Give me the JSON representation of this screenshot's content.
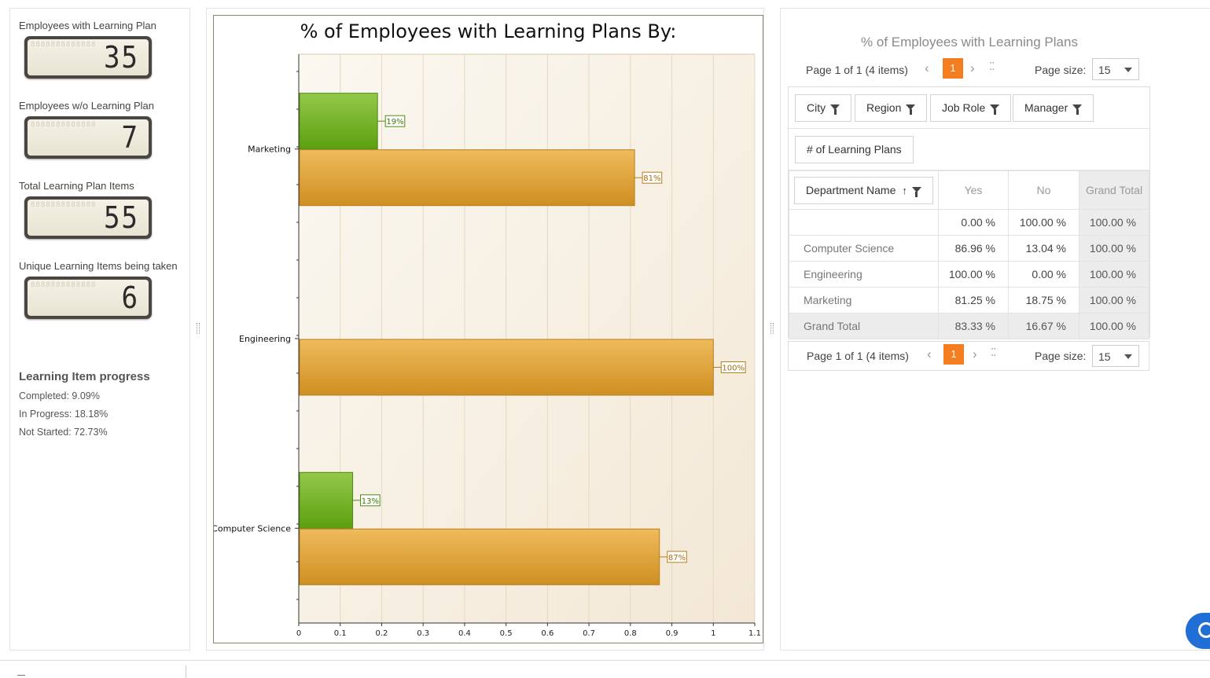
{
  "gauges": [
    {
      "label": "Employees with Learning Plan",
      "value": "35"
    },
    {
      "label": "Employees w/o Learning Plan",
      "value": "7"
    },
    {
      "label": "Total Learning Plan Items",
      "value": "55"
    },
    {
      "label": "Unique Learning Items being taken",
      "value": "6"
    }
  ],
  "progress": {
    "title": "Learning Item progress",
    "completed": "Completed: 9.09%",
    "in_progress": "In Progress: 18.18%",
    "not_started": "Not Started: 72.73%"
  },
  "chart_data": {
    "type": "bar",
    "orientation": "horizontal",
    "title": "% of Employees with Learning Plans By:",
    "categories": [
      "Marketing",
      "Engineering",
      "Computer Science"
    ],
    "series": [
      {
        "color": "#6fae2a",
        "values": [
          0.19,
          0,
          0.13
        ],
        "labels": [
          "19%",
          "",
          "13%"
        ]
      },
      {
        "color": "#e3a23a",
        "values": [
          0.81,
          1.0,
          0.87
        ],
        "labels": [
          "81%",
          "100%",
          "87%"
        ]
      }
    ],
    "x_ticks": [
      "0",
      "0.1",
      "0.2",
      "0.3",
      "0.4",
      "0.5",
      "0.6",
      "0.7",
      "0.8",
      "0.9",
      "1",
      "1.1"
    ],
    "xlim": [
      0,
      1.1
    ],
    "grid": true
  },
  "grid": {
    "title": "% of Employees with Learning Plans",
    "pager": {
      "info": "Page 1 of 1 (4 items)",
      "current_page": "1",
      "size_label": "Page size:",
      "size_value": "15"
    },
    "filter_fields": [
      "City",
      "Region",
      "Job Role",
      "Manager"
    ],
    "data_field": "# of Learning Plans",
    "row_field": "Department Name",
    "columns": [
      "Yes",
      "No",
      "Grand Total"
    ],
    "rows": [
      {
        "name": "",
        "values": [
          "0.00 %",
          "100.00 %",
          "100.00 %"
        ]
      },
      {
        "name": "Computer Science",
        "values": [
          "86.96 %",
          "13.04 %",
          "100.00 %"
        ]
      },
      {
        "name": "Engineering",
        "values": [
          "100.00 %",
          "0.00 %",
          "100.00 %"
        ]
      },
      {
        "name": "Marketing",
        "values": [
          "81.25 %",
          "18.75 %",
          "100.00 %"
        ]
      }
    ],
    "grand_total": {
      "name": "Grand Total",
      "values": [
        "83.33 %",
        "16.67 %",
        "100.00 %"
      ]
    }
  }
}
